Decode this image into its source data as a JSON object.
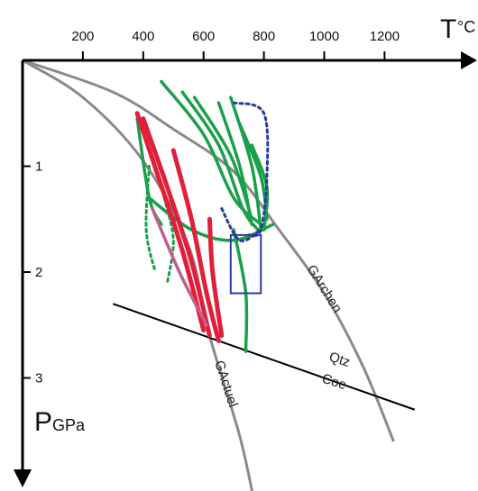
{
  "chart_data": {
    "type": "line",
    "title": "",
    "x_axis": {
      "symbol": "T",
      "unit": "°C",
      "range": [
        0,
        1300
      ],
      "ticks": [
        200,
        400,
        600,
        800,
        1000,
        1200
      ],
      "tick_labels": [
        "200",
        "400",
        "600",
        "800",
        "1000",
        "1200"
      ],
      "position": "top"
    },
    "y_axis": {
      "symbol": "P",
      "unit": "GPa",
      "range": [
        0,
        3.8
      ],
      "ticks": [
        1,
        2,
        3
      ],
      "tick_labels": [
        "1",
        "2",
        "3"
      ],
      "direction": "down"
    },
    "reference_curves": [
      {
        "label": "GArchen",
        "color": "#8a8a8a",
        "points": [
          [
            0,
            0
          ],
          [
            300,
            0.3
          ],
          [
            500,
            0.65
          ],
          [
            700,
            1.05
          ],
          [
            850,
            1.6
          ],
          [
            1000,
            2.2
          ],
          [
            1130,
            2.9
          ],
          [
            1230,
            3.6
          ]
        ]
      },
      {
        "label": "GActuel",
        "color": "#8a8a8a",
        "points": [
          [
            0,
            0
          ],
          [
            200,
            0.35
          ],
          [
            400,
            0.95
          ],
          [
            550,
            1.75
          ],
          [
            620,
            2.6
          ],
          [
            720,
            3.55
          ],
          [
            770,
            4.2
          ]
        ]
      }
    ],
    "phase_boundary": {
      "labels": [
        "Qtz",
        "Coe"
      ],
      "color": "#000000",
      "points": [
        [
          300,
          2.3
        ],
        [
          1300,
          3.3
        ]
      ]
    },
    "paths": [
      {
        "color": "#1aa04a",
        "style": "solid",
        "points": [
          [
            460,
            0.2
          ],
          [
            600,
            0.7
          ],
          [
            700,
            1.3
          ],
          [
            790,
            1.55
          ]
        ]
      },
      {
        "color": "#1aa04a",
        "style": "solid",
        "points": [
          [
            530,
            0.3
          ],
          [
            650,
            0.8
          ],
          [
            730,
            1.4
          ],
          [
            780,
            1.6
          ]
        ]
      },
      {
        "color": "#1aa04a",
        "style": "solid",
        "points": [
          [
            570,
            0.35
          ],
          [
            690,
            0.9
          ],
          [
            760,
            1.5
          ]
        ]
      },
      {
        "color": "#1aa04a",
        "style": "solid",
        "points": [
          [
            650,
            0.4
          ],
          [
            720,
            1.0
          ],
          [
            760,
            1.55
          ]
        ]
      },
      {
        "color": "#1aa04a",
        "style": "solid",
        "points": [
          [
            690,
            0.35
          ],
          [
            760,
            1.0
          ],
          [
            790,
            1.6
          ]
        ]
      },
      {
        "color": "#1aa04a",
        "style": "solid",
        "points": [
          [
            720,
            0.6
          ],
          [
            790,
            1.1
          ],
          [
            810,
            1.5
          ]
        ]
      },
      {
        "color": "#1aa04a",
        "style": "solid",
        "points": [
          [
            760,
            0.8
          ],
          [
            810,
            1.2
          ],
          [
            800,
            1.6
          ]
        ]
      },
      {
        "color": "#1aa04a",
        "style": "solid",
        "points": [
          [
            420,
            1.3
          ],
          [
            560,
            1.6
          ],
          [
            700,
            1.7
          ],
          [
            830,
            1.55
          ]
        ]
      },
      {
        "color": "#1aa04a",
        "style": "solid",
        "points": [
          [
            380,
            0.55
          ],
          [
            420,
            1.3
          ],
          [
            460,
            1.55
          ]
        ]
      },
      {
        "color": "#1aa04a",
        "style": "solid",
        "points": [
          [
            700,
            1.6
          ],
          [
            740,
            2.2
          ],
          [
            740,
            2.75
          ]
        ]
      },
      {
        "color": "#1aa04a",
        "style": "dotted",
        "points": [
          [
            420,
            1.0
          ],
          [
            410,
            1.6
          ],
          [
            440,
            2.0
          ]
        ]
      },
      {
        "color": "#1aa04a",
        "style": "dotted",
        "points": [
          [
            470,
            1.3
          ],
          [
            500,
            1.7
          ],
          [
            480,
            2.1
          ]
        ]
      },
      {
        "color": "#e0203a",
        "style": "solid",
        "points": [
          [
            380,
            0.5
          ],
          [
            450,
            1.1
          ],
          [
            530,
            1.8
          ],
          [
            600,
            2.55
          ]
        ]
      },
      {
        "color": "#e0203a",
        "style": "solid",
        "points": [
          [
            400,
            0.55
          ],
          [
            480,
            1.2
          ],
          [
            560,
            1.9
          ],
          [
            620,
            2.6
          ]
        ]
      },
      {
        "color": "#e0203a",
        "style": "solid",
        "points": [
          [
            500,
            0.85
          ],
          [
            560,
            1.5
          ],
          [
            610,
            2.2
          ],
          [
            650,
            2.65
          ]
        ]
      },
      {
        "color": "#e0203a",
        "style": "solid",
        "points": [
          [
            620,
            1.5
          ],
          [
            630,
            2.0
          ],
          [
            660,
            2.6
          ]
        ]
      },
      {
        "color": "#c0608a",
        "style": "solid",
        "points": [
          [
            430,
            1.4
          ],
          [
            520,
            2.0
          ],
          [
            610,
            2.5
          ]
        ]
      },
      {
        "color": "#2a3aa0",
        "style": "dotted",
        "points": [
          [
            700,
            0.4
          ],
          [
            800,
            0.5
          ],
          [
            810,
            1.1
          ],
          [
            790,
            1.6
          ],
          [
            750,
            1.65
          ]
        ]
      },
      {
        "color": "#2a3aa0",
        "style": "dotted",
        "points": [
          [
            660,
            1.4
          ],
          [
            720,
            1.7
          ],
          [
            790,
            1.6
          ]
        ]
      }
    ],
    "boxes": [
      {
        "color": "#2a3aa0",
        "x": [
          690,
          790
        ],
        "y": [
          1.65,
          2.2
        ]
      }
    ],
    "grid": false,
    "legend": "none"
  }
}
